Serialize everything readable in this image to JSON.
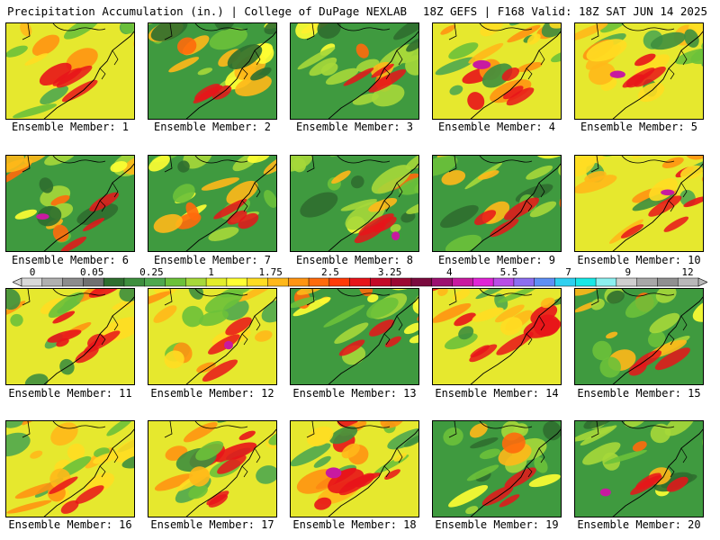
{
  "header": {
    "title_left": "Precipitation Accumulation (in.) | College of DuPage NEXLAB",
    "title_right": "18Z GEFS | F168 Valid: 18Z SAT JUN 14 2025"
  },
  "caption_prefix": "Ensemble Member: ",
  "members": [
    {
      "number": "1",
      "dominant": "yellow",
      "has_magenta_max": false
    },
    {
      "number": "2",
      "dominant": "green",
      "has_magenta_max": false
    },
    {
      "number": "3",
      "dominant": "green",
      "has_magenta_max": false
    },
    {
      "number": "4",
      "dominant": "yellow",
      "has_magenta_max": true
    },
    {
      "number": "5",
      "dominant": "yellow",
      "has_magenta_max": true
    },
    {
      "number": "6",
      "dominant": "green",
      "has_magenta_max": true
    },
    {
      "number": "7",
      "dominant": "green",
      "has_magenta_max": false
    },
    {
      "number": "8",
      "dominant": "green",
      "has_magenta_max": true
    },
    {
      "number": "9",
      "dominant": "green",
      "has_magenta_max": false
    },
    {
      "number": "10",
      "dominant": "yellow",
      "has_magenta_max": true
    },
    {
      "number": "11",
      "dominant": "yellow",
      "has_magenta_max": false
    },
    {
      "number": "12",
      "dominant": "yellow",
      "has_magenta_max": true
    },
    {
      "number": "13",
      "dominant": "green",
      "has_magenta_max": false
    },
    {
      "number": "14",
      "dominant": "yellow",
      "has_magenta_max": false
    },
    {
      "number": "15",
      "dominant": "green",
      "has_magenta_max": false
    },
    {
      "number": "16",
      "dominant": "yellow",
      "has_magenta_max": false
    },
    {
      "number": "17",
      "dominant": "yellow",
      "has_magenta_max": false
    },
    {
      "number": "18",
      "dominant": "yellow",
      "has_magenta_max": true
    },
    {
      "number": "19",
      "dominant": "green",
      "has_magenta_max": false
    },
    {
      "number": "20",
      "dominant": "green",
      "has_magenta_max": true
    }
  ],
  "colorbar": {
    "tick_labels": [
      "0",
      "0.05",
      "0.25",
      "1",
      "1.75",
      "2.5",
      "3.25",
      "4",
      "5.5",
      "7",
      "9",
      "12"
    ],
    "colors": [
      "#d9d9d9",
      "#b0b0b0",
      "#8c8c8c",
      "#707070",
      "#2f6e2f",
      "#3e8f3e",
      "#4fa84f",
      "#6cc13a",
      "#a6d83a",
      "#e3ee2a",
      "#ffff33",
      "#ffdd22",
      "#ffb81a",
      "#ff9412",
      "#ff6a0c",
      "#ff3a08",
      "#e8141a",
      "#c40a28",
      "#9b0833",
      "#7a0a3e",
      "#9c1070",
      "#c81aa0",
      "#e024d6",
      "#b84de6",
      "#8c6ef0",
      "#5e8ff5",
      "#2ed0f0",
      "#18e8e6",
      "#8cf0f0",
      "#cfcfcf",
      "#a8a8a8",
      "#909090",
      "#b8b8b8"
    ]
  }
}
